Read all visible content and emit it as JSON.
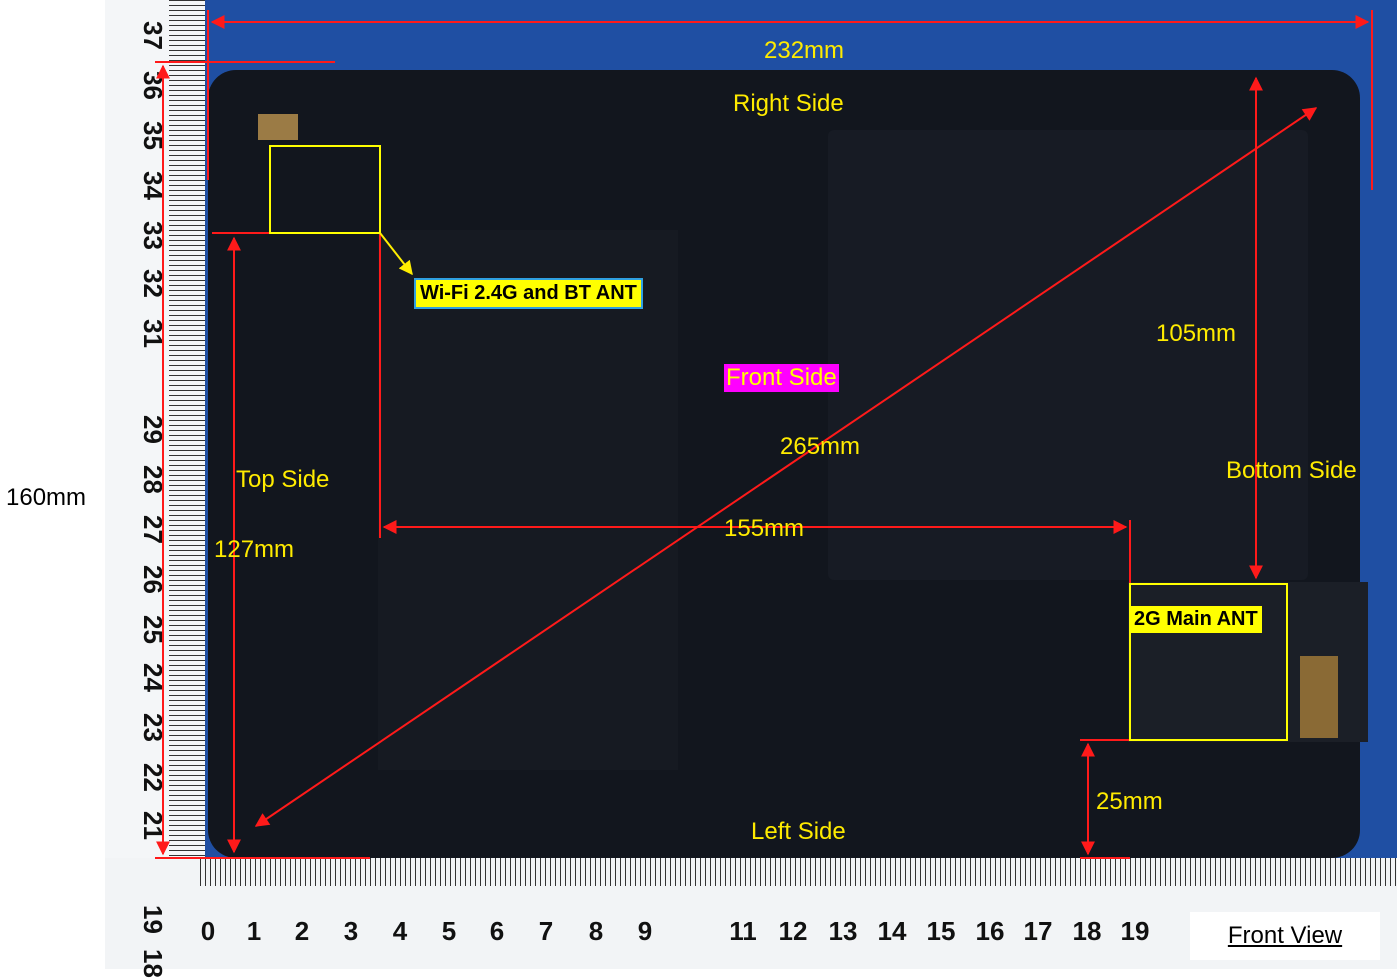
{
  "labels": {
    "width": "232mm",
    "height": "160mm",
    "diagonal": "265mm",
    "wifi_height": "127mm",
    "wifi_to_main": "155mm",
    "main_to_top": "105mm",
    "main_to_bottom": "25mm",
    "right_side": "Right Side",
    "left_side": "Left Side",
    "top_side": "Top Side",
    "bottom_side": "Bottom Side",
    "front_side": "Front Side",
    "front_view": "Front View"
  },
  "antennas": {
    "wifi": "Wi-Fi 2.4G and BT ANT",
    "main_2g": "2G Main ANT"
  },
  "ruler": {
    "horizontal": [
      "0",
      "1",
      "2",
      "3",
      "4",
      "5",
      "6",
      "7",
      "8",
      "9",
      "11",
      "12",
      "13",
      "14",
      "15",
      "16",
      "17",
      "18",
      "19"
    ],
    "vertical": [
      "37",
      "36",
      "35",
      "34",
      "33",
      "32",
      "31",
      "29",
      "28",
      "27",
      "26",
      "25",
      "24",
      "23",
      "22",
      "21",
      "19",
      "18"
    ]
  },
  "colors": {
    "background": "#1f4fa3",
    "device": "#12161e",
    "arrow": "#ff1a1a",
    "antenna_box": "#ffff00",
    "label_text": "#ffeb00",
    "front_side_bg": "#ff00ff"
  }
}
